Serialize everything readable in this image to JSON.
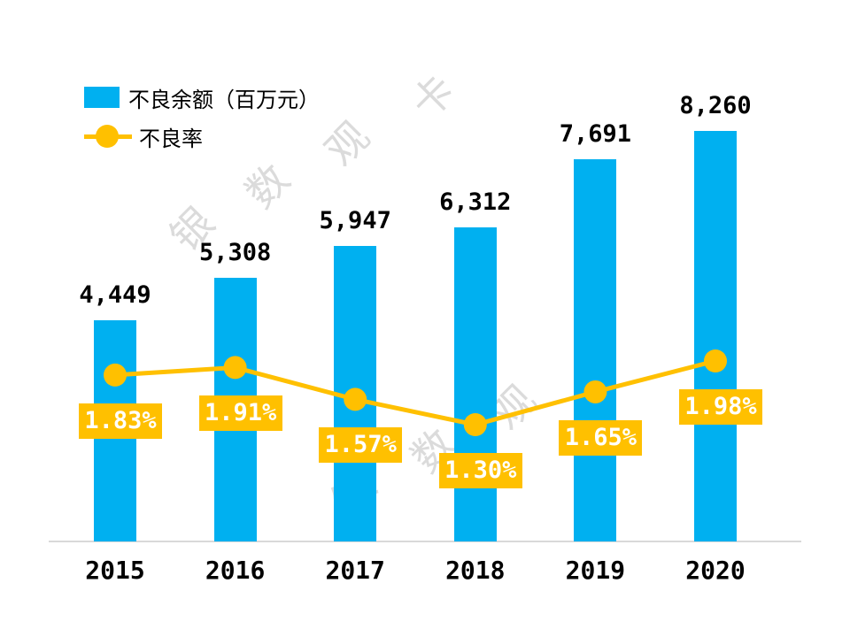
{
  "page": {
    "background": "#FFFFFF"
  },
  "legend": {
    "items": [
      {
        "label": "不良余额（百万元）",
        "type": "bar",
        "color": "#00B0F0"
      },
      {
        "label": "不良率",
        "type": "line",
        "color": "#FFC000"
      }
    ]
  },
  "watermark": {
    "chars": [
      "银",
      "数",
      "观",
      "卡"
    ],
    "color": "#DBDBDB"
  },
  "chart_data": {
    "type": "combo",
    "categories": [
      "2015",
      "2016",
      "2017",
      "2018",
      "2019",
      "2020"
    ],
    "series": [
      {
        "name": "不良余额（百万元）",
        "type": "bar",
        "color": "#00B0F0",
        "values": [
          4449,
          5308,
          5947,
          6312,
          7691,
          8260
        ],
        "labels": [
          "4,449",
          "5,308",
          "5,947",
          "6,312",
          "7,691",
          "8,260"
        ],
        "label_text_color": "#000000"
      },
      {
        "name": "不良率",
        "type": "line",
        "color": "#FFC000",
        "values": [
          1.83,
          1.91,
          1.57,
          1.3,
          1.65,
          1.98
        ],
        "labels": [
          "1.83%",
          "1.91%",
          "1.57%",
          "1.30%",
          "1.65%",
          "1.98%"
        ],
        "label_text_color": "#FFFFFF"
      }
    ],
    "title": "",
    "xlabel": "",
    "ylabel": "",
    "legend_position": "top-left",
    "grid": false,
    "axes_visible": false,
    "baseline_color": "#D9D9D9"
  }
}
